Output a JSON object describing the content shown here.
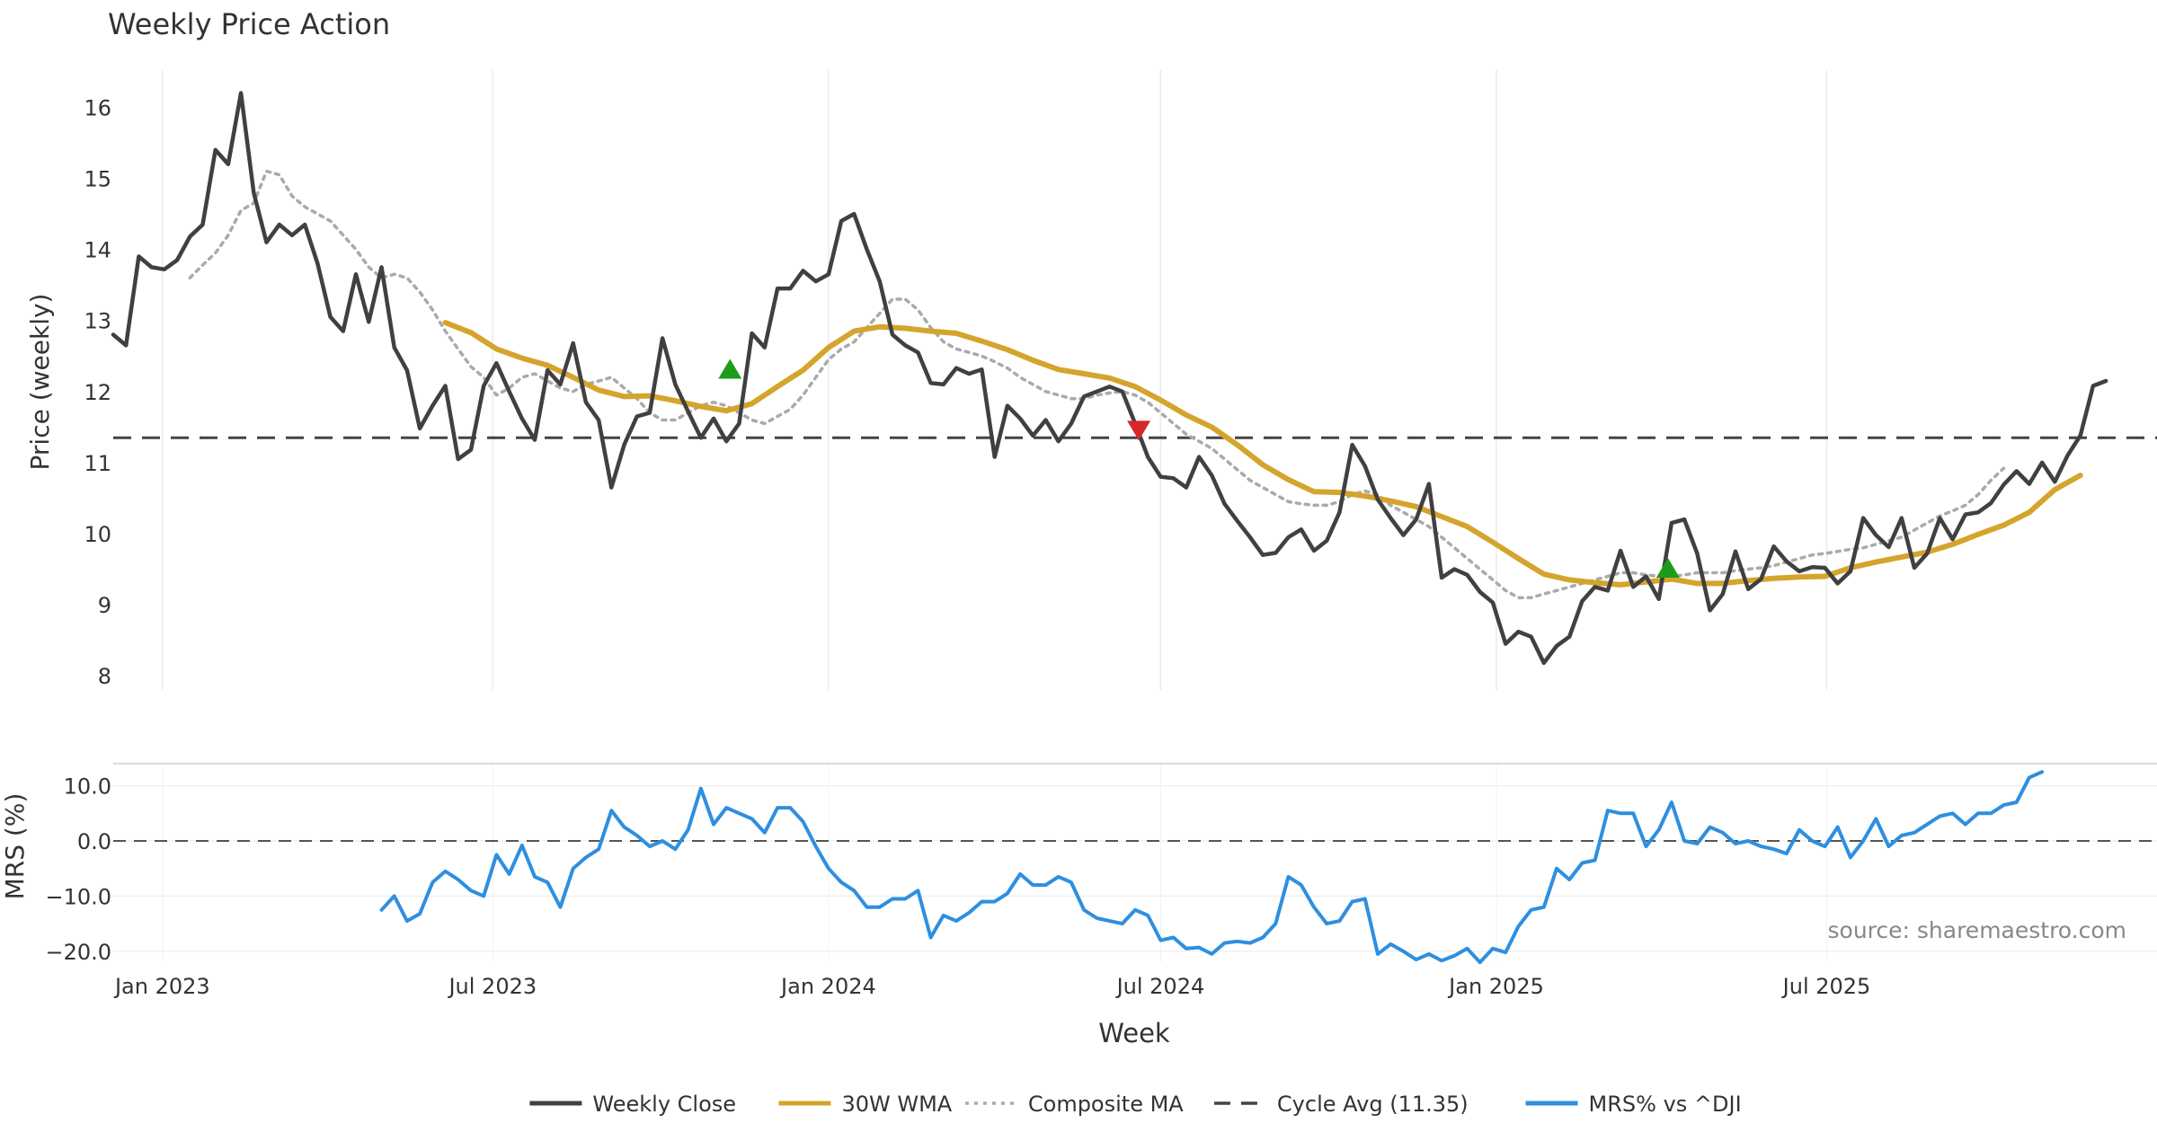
{
  "chart_data": [
    {
      "type": "line",
      "panel": "price",
      "title": "Weekly Price Action",
      "ylabel": "Price (weekly)",
      "ylim": [
        7.8,
        16.6
      ],
      "yticks": [
        8,
        9,
        10,
        11,
        12,
        13,
        14,
        15,
        16
      ],
      "x_range": [
        "2022-12-05",
        "2025-12-29"
      ],
      "x_ticks": [
        {
          "date": "2023-01-01",
          "label": "Jan 2023"
        },
        {
          "date": "2023-07-01",
          "label": "Jul 2023"
        },
        {
          "date": "2024-01-01",
          "label": "Jan 2024"
        },
        {
          "date": "2024-07-01",
          "label": "Jul 2024"
        },
        {
          "date": "2025-01-01",
          "label": "Jan 2025"
        },
        {
          "date": "2025-07-01",
          "label": "Jul 2025"
        }
      ],
      "grid": true,
      "series": [
        {
          "name": "Weekly Close",
          "color": "#404040",
          "start_date": "2022-12-05",
          "week_step": 1,
          "values": [
            12.8,
            12.65,
            13.9,
            13.75,
            13.72,
            13.85,
            14.18,
            14.35,
            15.4,
            15.2,
            16.2,
            14.8,
            14.1,
            14.35,
            14.2,
            14.35,
            13.8,
            13.05,
            12.85,
            13.65,
            12.98,
            13.75,
            12.62,
            12.3,
            11.48,
            11.8,
            12.08,
            11.05,
            11.18,
            12.08,
            12.4,
            12.0,
            11.62,
            11.32,
            12.3,
            12.1,
            12.68,
            11.85,
            11.6,
            10.65,
            11.25,
            11.65,
            11.7,
            12.75,
            12.1,
            11.72,
            11.35,
            11.62,
            11.3,
            11.55,
            12.82,
            12.62,
            13.45,
            13.45,
            13.7,
            13.55,
            13.65,
            14.4,
            14.5,
            14.0,
            13.55,
            12.8,
            12.65,
            12.55,
            12.12,
            12.1,
            12.33,
            12.25,
            12.31,
            11.08,
            11.8,
            11.62,
            11.38,
            11.6,
            11.3,
            11.55,
            11.93,
            12.0,
            12.07,
            12.0,
            11.55,
            11.08,
            10.8,
            10.78,
            10.65,
            11.08,
            10.82,
            10.42,
            10.18,
            9.95,
            9.7,
            9.73,
            9.95,
            10.06,
            9.76,
            9.9,
            10.3,
            11.25,
            10.95,
            10.48,
            10.22,
            9.98,
            10.2,
            10.7,
            9.38,
            9.5,
            9.42,
            9.18,
            9.03,
            8.45,
            8.62,
            8.55,
            8.18,
            8.42,
            8.55,
            9.05,
            9.25,
            9.2,
            9.76,
            9.25,
            9.4,
            9.08,
            10.15,
            10.2,
            9.72,
            8.92,
            9.15,
            9.75,
            9.22,
            9.36,
            9.82,
            9.61,
            9.47,
            9.53,
            9.52,
            9.3,
            9.47,
            10.22,
            9.98,
            9.81,
            10.22,
            9.52,
            9.72,
            10.22,
            9.92,
            10.27,
            10.3,
            10.43,
            10.69,
            10.88,
            10.7,
            11.0,
            10.73,
            11.1,
            11.38,
            12.08,
            12.15
          ]
        },
        {
          "name": "30W WMA",
          "color": "#d4a42c",
          "start_date": "2023-06-05",
          "week_step": 2,
          "values": [
            12.97,
            12.83,
            12.6,
            12.47,
            12.37,
            12.2,
            12.02,
            11.93,
            11.94,
            11.87,
            11.79,
            11.73,
            11.83,
            12.07,
            12.3,
            12.62,
            12.85,
            12.91,
            12.89,
            12.85,
            12.82,
            12.71,
            12.59,
            12.44,
            12.31,
            12.25,
            12.19,
            12.07,
            11.88,
            11.67,
            11.5,
            11.25,
            10.97,
            10.76,
            10.59,
            10.58,
            10.53,
            10.46,
            10.38,
            10.24,
            10.1,
            9.88,
            9.65,
            9.43,
            9.35,
            9.31,
            9.28,
            9.32,
            9.36,
            9.3,
            9.3,
            9.34,
            9.37,
            9.39,
            9.4,
            9.52,
            9.6,
            9.67,
            9.74,
            9.85,
            9.99,
            10.12,
            10.3,
            10.62,
            10.82
          ]
        },
        {
          "name": "Composite MA",
          "color": "#aaaaaa",
          "start_date": "2023-01-16",
          "week_step": 1,
          "values": [
            13.6,
            13.78,
            13.95,
            14.2,
            14.55,
            14.65,
            15.1,
            15.05,
            14.75,
            14.6,
            14.5,
            14.4,
            14.2,
            14.0,
            13.75,
            13.6,
            13.65,
            13.6,
            13.4,
            13.15,
            12.85,
            12.6,
            12.35,
            12.2,
            11.95,
            12.05,
            12.2,
            12.25,
            12.15,
            12.05,
            12.0,
            12.1,
            12.15,
            12.2,
            12.05,
            11.9,
            11.7,
            11.6,
            11.6,
            11.7,
            11.8,
            11.85,
            11.8,
            11.7,
            11.6,
            11.55,
            11.65,
            11.75,
            11.95,
            12.2,
            12.45,
            12.6,
            12.7,
            12.9,
            13.1,
            13.3,
            13.3,
            13.15,
            12.9,
            12.7,
            12.6,
            12.55,
            12.5,
            12.42,
            12.33,
            12.2,
            12.1,
            12.0,
            11.95,
            11.9,
            11.9,
            11.95,
            11.98,
            12.0,
            11.95,
            11.85,
            11.7,
            11.55,
            11.4,
            11.3,
            11.2,
            11.05,
            10.9,
            10.75,
            10.65,
            10.55,
            10.45,
            10.42,
            10.4,
            10.4,
            10.45,
            10.55,
            10.6,
            10.55,
            10.4,
            10.3,
            10.2,
            10.1,
            9.95,
            9.8,
            9.65,
            9.5,
            9.35,
            9.2,
            9.1,
            9.1,
            9.15,
            9.2,
            9.25,
            9.3,
            9.35,
            9.4,
            9.45,
            9.45,
            9.42,
            9.4,
            9.4,
            9.42,
            9.45,
            9.45,
            9.45,
            9.48,
            9.5,
            9.52,
            9.55,
            9.6,
            9.65,
            9.7,
            9.72,
            9.75,
            9.78,
            9.8,
            9.85,
            9.9,
            9.95,
            10.05,
            10.15,
            10.25,
            10.32,
            10.4,
            10.55,
            10.75,
            10.92
          ]
        },
        {
          "name": "Cycle Avg (11.35)",
          "color": "#444444",
          "type": "hline",
          "value": 11.35
        }
      ],
      "markers": [
        {
          "date": "2023-11-08",
          "value": 12.32,
          "shape": "triangle-up",
          "color": "#1a9e1a"
        },
        {
          "date": "2024-06-19",
          "value": 11.45,
          "shape": "triangle-down",
          "color": "#d62728"
        },
        {
          "date": "2025-04-05",
          "value": 9.52,
          "shape": "triangle-up",
          "color": "#1a9e1a"
        }
      ]
    },
    {
      "type": "line",
      "panel": "mrs",
      "ylabel": "MRS (%)",
      "ylim": [
        -21,
        14
      ],
      "yticks": [
        10,
        0,
        -10,
        -20
      ],
      "ytick_labels": [
        "10.0",
        "0.0",
        "−10.0",
        "−20.0"
      ],
      "xlabel": "Week",
      "annotation": "source: sharemaestro.com",
      "series": [
        {
          "name": "MRS% vs ^DJI",
          "color": "#2e8fe0",
          "start_date": "2023-05-01",
          "week_step": 1,
          "values": [
            -12.5,
            -10,
            -14.5,
            -13.2,
            -7.5,
            -5.5,
            -7,
            -9,
            -10,
            -2.5,
            -6,
            -0.8,
            -6.5,
            -7.5,
            -12,
            -5,
            -3,
            -1.5,
            5.5,
            2.5,
            1,
            -1,
            0,
            -1.5,
            2,
            9.5,
            3,
            6,
            5,
            4,
            1.5,
            6,
            6,
            3.5,
            -1,
            -5,
            -7.5,
            -9,
            -12,
            -12,
            -10.5,
            -10.5,
            -9,
            -17.5,
            -13.5,
            -14.5,
            -13,
            -11,
            -11,
            -9.5,
            -6,
            -8,
            -8,
            -6.5,
            -7.5,
            -12.5,
            -14,
            -14.5,
            -15,
            -12.5,
            -13.5,
            -18,
            -17.5,
            -19.5,
            -19.3,
            -20.5,
            -18.5,
            -18.2,
            -18.5,
            -17.5,
            -15,
            -6.5,
            -8,
            -12,
            -15,
            -14.5,
            -11,
            -10.5,
            -20.5,
            -18.7,
            -20,
            -21.5,
            -20.5,
            -21.7,
            -20.8,
            -19.5,
            -22,
            -19.5,
            -20.2,
            -15.5,
            -12.5,
            -12,
            -5,
            -7,
            -4,
            -3.5,
            5.5,
            5,
            5,
            -1,
            2,
            7,
            0,
            -0.5,
            2.5,
            1.5,
            -0.5,
            0,
            -1,
            -1.5,
            -2.3,
            2,
            0,
            -1,
            2.5,
            -3,
            0,
            4,
            -1,
            1,
            1.5,
            3,
            4.5,
            5,
            3,
            5,
            5,
            6.5,
            7,
            11.5,
            12.5
          ]
        }
      ]
    }
  ],
  "legend": {
    "placement": "bottom-center",
    "items": [
      {
        "label": "Weekly Close",
        "color": "#404040",
        "style": "solid"
      },
      {
        "label": "30W WMA",
        "color": "#d4a42c",
        "style": "solid"
      },
      {
        "label": "Composite MA",
        "color": "#aaaaaa",
        "style": "dotted"
      },
      {
        "label": "Cycle Avg (11.35)",
        "color": "#444444",
        "style": "dashed"
      },
      {
        "label": "MRS% vs ^DJI",
        "color": "#2e8fe0",
        "style": "solid"
      }
    ]
  }
}
